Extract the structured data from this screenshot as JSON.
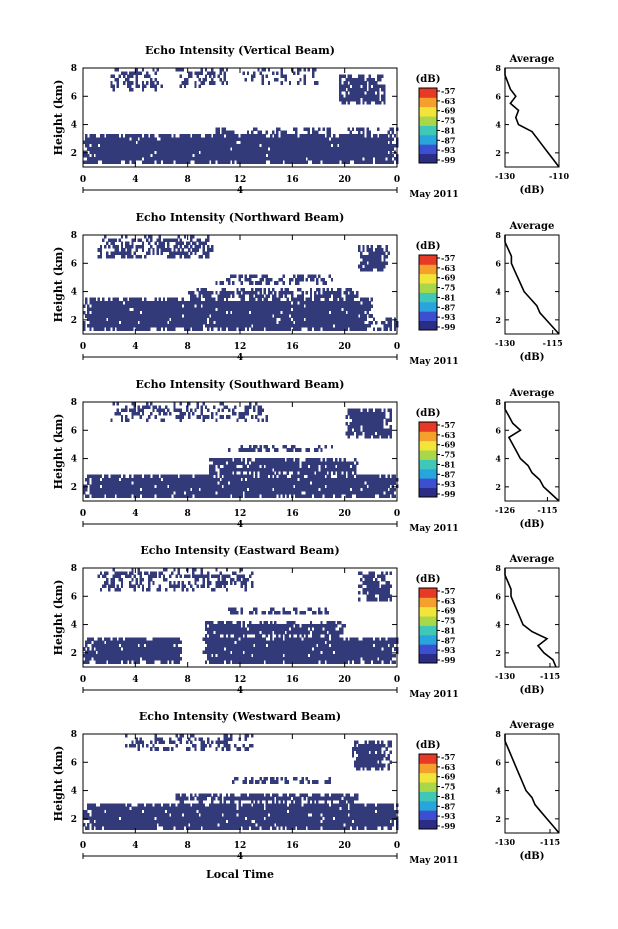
{
  "figure": {
    "date_label": "May 2011",
    "shared_xlabel": "Local Time",
    "colorbar_unit": "(dB)",
    "colorbar_ticks": [
      "-57",
      "-63",
      "-69",
      "-75",
      "-81",
      "-87",
      "-93",
      "-99"
    ],
    "colors": {
      "echo": "#333a7a",
      "colorbar": [
        "#2b2c83",
        "#3b4fd0",
        "#27a5dc",
        "#3fc8b8",
        "#a8d84a",
        "#f3e43a",
        "#f5a02c",
        "#e63a26"
      ]
    }
  },
  "chart_data": [
    {
      "type": "heatmap",
      "title": "Echo Intensity (Vertical Beam)",
      "ylabel": "Height (km)",
      "xlim": [
        0,
        24
      ],
      "ylim": [
        1,
        8
      ],
      "xticks": [
        "0",
        "4",
        "8",
        "12",
        "16",
        "20",
        "0"
      ],
      "yticks": [
        "2",
        "4",
        "6",
        "8"
      ],
      "day_marker": "4",
      "profile": {
        "title": "Average",
        "xlabel": "(dB)",
        "xlim": [
          -130,
          -110
        ],
        "xticks": [
          "-130",
          "-110"
        ],
        "yticks": [
          "2",
          "4",
          "6",
          "8"
        ],
        "height": [
          1.0,
          1.5,
          2.0,
          2.5,
          3.0,
          3.5,
          4.0,
          4.5,
          5.0,
          5.5,
          6.0,
          6.5,
          7.0,
          7.5,
          8.0
        ],
        "values": [
          -110,
          -112,
          -114,
          -116,
          -118,
          -120,
          -125,
          -126,
          -125,
          -128,
          -126,
          -128,
          -129,
          -130,
          -131
        ]
      }
    },
    {
      "type": "heatmap",
      "title": "Echo Intensity (Northward Beam)",
      "ylabel": "Height (km)",
      "xlim": [
        0,
        24
      ],
      "ylim": [
        1,
        8
      ],
      "xticks": [
        "0",
        "4",
        "8",
        "12",
        "16",
        "20",
        "0"
      ],
      "yticks": [
        "2",
        "4",
        "6",
        "8"
      ],
      "day_marker": "4",
      "profile": {
        "title": "Average",
        "xlabel": "(dB)",
        "xlim": [
          -130,
          -113
        ],
        "xticks": [
          "-130",
          "-115"
        ],
        "yticks": [
          "2",
          "4",
          "6",
          "8"
        ],
        "height": [
          1.0,
          1.5,
          2.0,
          2.5,
          3.0,
          3.5,
          4.0,
          4.5,
          5.0,
          5.5,
          6.0,
          6.5,
          7.0,
          7.5,
          8.0
        ],
        "values": [
          -113,
          -115,
          -117,
          -119,
          -120,
          -122,
          -124,
          -125,
          -126,
          -127,
          -128,
          -128,
          -129,
          -130,
          -131
        ]
      }
    },
    {
      "type": "heatmap",
      "title": "Echo Intensity (Southward Beam)",
      "ylabel": "Height (km)",
      "xlim": [
        0,
        24
      ],
      "ylim": [
        1,
        8
      ],
      "xticks": [
        "0",
        "4",
        "8",
        "12",
        "16",
        "20",
        "0"
      ],
      "yticks": [
        "2",
        "4",
        "6",
        "8"
      ],
      "day_marker": "4",
      "profile": {
        "title": "Average",
        "xlabel": "(dB)",
        "xlim": [
          -126,
          -112
        ],
        "xticks": [
          "-126",
          "-115"
        ],
        "yticks": [
          "2",
          "4",
          "6",
          "8"
        ],
        "height": [
          1.0,
          1.5,
          2.0,
          2.5,
          3.0,
          3.5,
          4.0,
          4.5,
          5.0,
          5.5,
          6.0,
          6.5,
          7.0,
          7.5,
          8.0
        ],
        "values": [
          -112,
          -114,
          -116,
          -117,
          -119,
          -120,
          -122,
          -123,
          -124,
          -125,
          -122,
          -124,
          -125,
          -126,
          -127
        ]
      }
    },
    {
      "type": "heatmap",
      "title": "Echo Intensity (Eastward Beam)",
      "ylabel": "Height (km)",
      "xlim": [
        0,
        24
      ],
      "ylim": [
        1,
        8
      ],
      "xticks": [
        "0",
        "4",
        "8",
        "12",
        "16",
        "20",
        "0"
      ],
      "yticks": [
        "2",
        "4",
        "6",
        "8"
      ],
      "day_marker": "4",
      "profile": {
        "title": "Average",
        "xlabel": "(dB)",
        "xlim": [
          -130,
          -112
        ],
        "xticks": [
          "-130",
          "-115"
        ],
        "yticks": [
          "2",
          "4",
          "6",
          "8"
        ],
        "height": [
          1.0,
          1.5,
          2.0,
          2.5,
          3.0,
          3.5,
          4.0,
          4.5,
          5.0,
          5.5,
          6.0,
          6.5,
          7.0,
          7.5,
          8.0
        ],
        "values": [
          -113,
          -114,
          -117,
          -119,
          -116,
          -121,
          -124,
          -125,
          -126,
          -127,
          -128,
          -128,
          -129,
          -130,
          -131
        ]
      }
    },
    {
      "type": "heatmap",
      "title": "Echo Intensity (Westward Beam)",
      "ylabel": "Height (km)",
      "xlim": [
        0,
        24
      ],
      "ylim": [
        1,
        8
      ],
      "xticks": [
        "0",
        "4",
        "8",
        "12",
        "16",
        "20",
        "0"
      ],
      "yticks": [
        "2",
        "4",
        "6",
        "8"
      ],
      "day_marker": "4",
      "profile": {
        "title": "Average",
        "xlabel": "(dB)",
        "xlim": [
          -130,
          -112
        ],
        "xticks": [
          "-130",
          "-115"
        ],
        "yticks": [
          "2",
          "4",
          "6",
          "8"
        ],
        "height": [
          1.0,
          1.5,
          2.0,
          2.5,
          3.0,
          3.5,
          4.0,
          4.5,
          5.0,
          5.5,
          6.0,
          6.5,
          7.0,
          7.5,
          8.0
        ],
        "values": [
          -112,
          -114,
          -116,
          -118,
          -120,
          -121,
          -123,
          -124,
          -125,
          -126,
          -127,
          -128,
          -129,
          -130,
          -131
        ]
      }
    }
  ]
}
